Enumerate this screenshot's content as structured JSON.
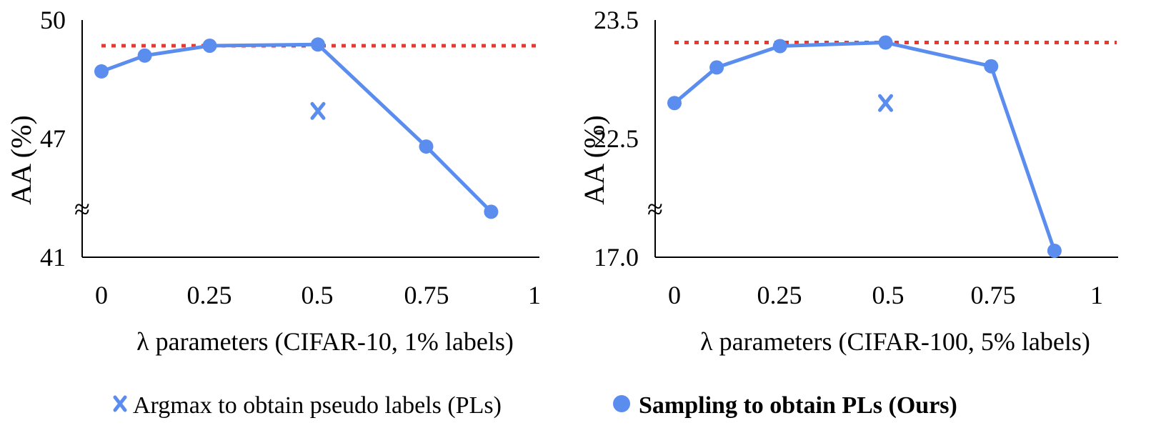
{
  "chart_data": [
    {
      "type": "line",
      "xlabel": "λ parameters (CIFAR-10, 1% labels)",
      "ylabel": "AA (%)",
      "x_ticks": [
        "0",
        "0.25",
        "0.5",
        "0.75",
        "1"
      ],
      "y_ticks": [
        "50",
        "47",
        "41"
      ],
      "axis_break": "≈",
      "series": [
        {
          "name": "Sampling to obtain PLs (Ours)",
          "x": [
            0,
            0.1,
            0.25,
            0.5,
            0.75,
            0.9
          ],
          "y": [
            48.7,
            49.1,
            49.35,
            49.38,
            46.6,
            43.3
          ]
        }
      ],
      "argmax_point": {
        "name": "Argmax to obtain pseudo labels (PLs)",
        "x": 0.5,
        "y": 47.7
      },
      "reference_line": {
        "y": 49.35
      }
    },
    {
      "type": "line",
      "xlabel": "λ parameters (CIFAR-100, 5% labels)",
      "ylabel": "AA (%)",
      "x_ticks": [
        "0",
        "0.25",
        "0.5",
        "0.75",
        "1"
      ],
      "y_ticks": [
        "23.5",
        "22.5",
        "17.0"
      ],
      "axis_break": "≈",
      "series": [
        {
          "name": "Sampling to obtain PLs (Ours)",
          "x": [
            0,
            0.1,
            0.25,
            0.5,
            0.75,
            0.9
          ],
          "y": [
            22.8,
            23.1,
            23.28,
            23.31,
            23.11,
            17.3
          ]
        }
      ],
      "argmax_point": {
        "name": "Argmax to obtain pseudo labels (PLs)",
        "x": 0.5,
        "y": 22.8
      },
      "reference_line": {
        "y": 23.31
      }
    }
  ],
  "legend": {
    "argmax_label": "Argmax to obtain pseudo labels (PLs)",
    "sampling_label": "Sampling to obtain PLs (Ours)"
  },
  "colors": {
    "series": "#5B8DEF",
    "reference": "#E8382F",
    "axis": "#000000"
  }
}
